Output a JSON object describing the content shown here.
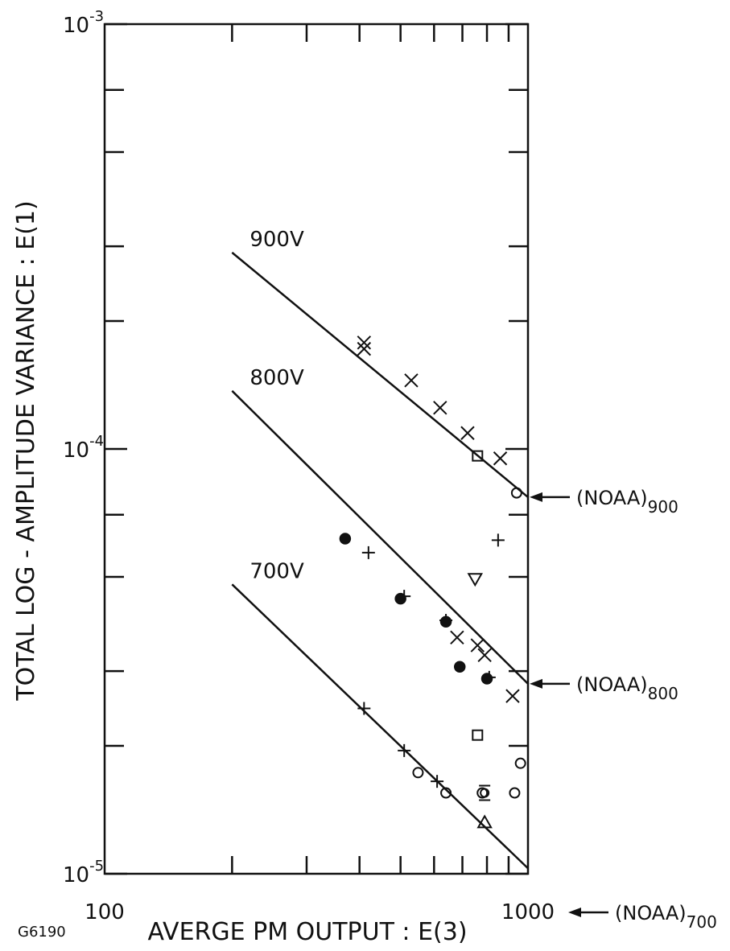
{
  "chart_data": {
    "type": "scatter",
    "x_scale": "log",
    "y_scale": "log",
    "xlim": [
      100,
      1000
    ],
    "ylim": [
      1e-05,
      0.001
    ],
    "grid": false,
    "xlabel": "AVERGE PM OUTPUT : E(3)",
    "ylabel": "TOTAL LOG - AMPLITUDE VARIANCE : E(1)",
    "figure_id": "G6190",
    "x_tick_labels": [
      {
        "value": 100,
        "label": "100"
      },
      {
        "value": 1000,
        "label": "1000"
      }
    ],
    "y_tick_labels": [
      {
        "value": 0.001,
        "base": "10",
        "exp": "-3"
      },
      {
        "value": 0.0001,
        "base": "10",
        "exp": "-4"
      },
      {
        "value": 1e-05,
        "base": "10",
        "exp": "-5"
      }
    ],
    "y_minor_ticks": [
      2e-05,
      3e-05,
      5e-05,
      7e-05,
      0.0002,
      0.0003,
      0.0005,
      0.0007
    ],
    "x_minor_ticks": [
      200,
      300,
      400,
      500,
      600,
      700,
      800,
      900
    ],
    "fit_lines": [
      {
        "label": "900V",
        "x": [
          200,
          1000
        ],
        "y": [
          0.00029,
          7.7e-05
        ]
      },
      {
        "label": "800V",
        "x": [
          200,
          1000
        ],
        "y": [
          0.000137,
          2.8e-05
        ]
      },
      {
        "label": "700V",
        "x": [
          200,
          1000
        ],
        "y": [
          4.8e-05,
          1.03e-05
        ]
      }
    ],
    "reference_labels": [
      {
        "prefix": "(NOAA)",
        "sub": "900",
        "y": 7.7e-05
      },
      {
        "prefix": "(NOAA)",
        "sub": "800",
        "y": 2.8e-05
      },
      {
        "prefix": "(NOAA)",
        "sub": "700",
        "y": "below 0.00001"
      }
    ],
    "series": [
      {
        "marker": "x",
        "points": [
          [
            410,
            0.000178
          ],
          [
            410,
            0.000172
          ],
          [
            530,
            0.000145
          ],
          [
            620,
            0.000125
          ],
          [
            720,
            0.000109
          ],
          [
            860,
            9.5e-05
          ],
          [
            680,
            3.6e-05
          ],
          [
            760,
            3.45e-05
          ],
          [
            790,
            3.27e-05
          ],
          [
            920,
            2.62e-05
          ]
        ]
      },
      {
        "marker": "plus",
        "points": [
          [
            420,
            5.7e-05
          ],
          [
            510,
            4.5e-05
          ],
          [
            640,
            3.95e-05
          ],
          [
            850,
            6.1e-05
          ],
          [
            810,
            2.9e-05
          ],
          [
            410,
            2.45e-05
          ],
          [
            510,
            1.95e-05
          ],
          [
            610,
            1.65e-05
          ]
        ]
      },
      {
        "marker": "filled-circle",
        "points": [
          [
            370,
            6.15e-05
          ],
          [
            500,
            4.44e-05
          ],
          [
            640,
            3.92e-05
          ],
          [
            690,
            3.07e-05
          ],
          [
            800,
            2.88e-05
          ]
        ]
      },
      {
        "marker": "open-circle",
        "points": [
          [
            940,
            7.88e-05
          ],
          [
            550,
            1.73e-05
          ],
          [
            640,
            1.55e-05
          ],
          [
            780,
            1.55e-05
          ],
          [
            930,
            1.55e-05
          ],
          [
            960,
            1.82e-05
          ]
        ]
      },
      {
        "marker": "open-circle-bar",
        "points": [
          [
            790,
            1.55e-05
          ]
        ]
      },
      {
        "marker": "open-square",
        "points": [
          [
            760,
            9.63e-05
          ],
          [
            760,
            2.12e-05
          ]
        ]
      },
      {
        "marker": "triangle-down",
        "points": [
          [
            750,
            4.95e-05
          ]
        ]
      },
      {
        "marker": "triangle-up",
        "points": [
          [
            790,
            1.32e-05
          ]
        ]
      }
    ]
  }
}
